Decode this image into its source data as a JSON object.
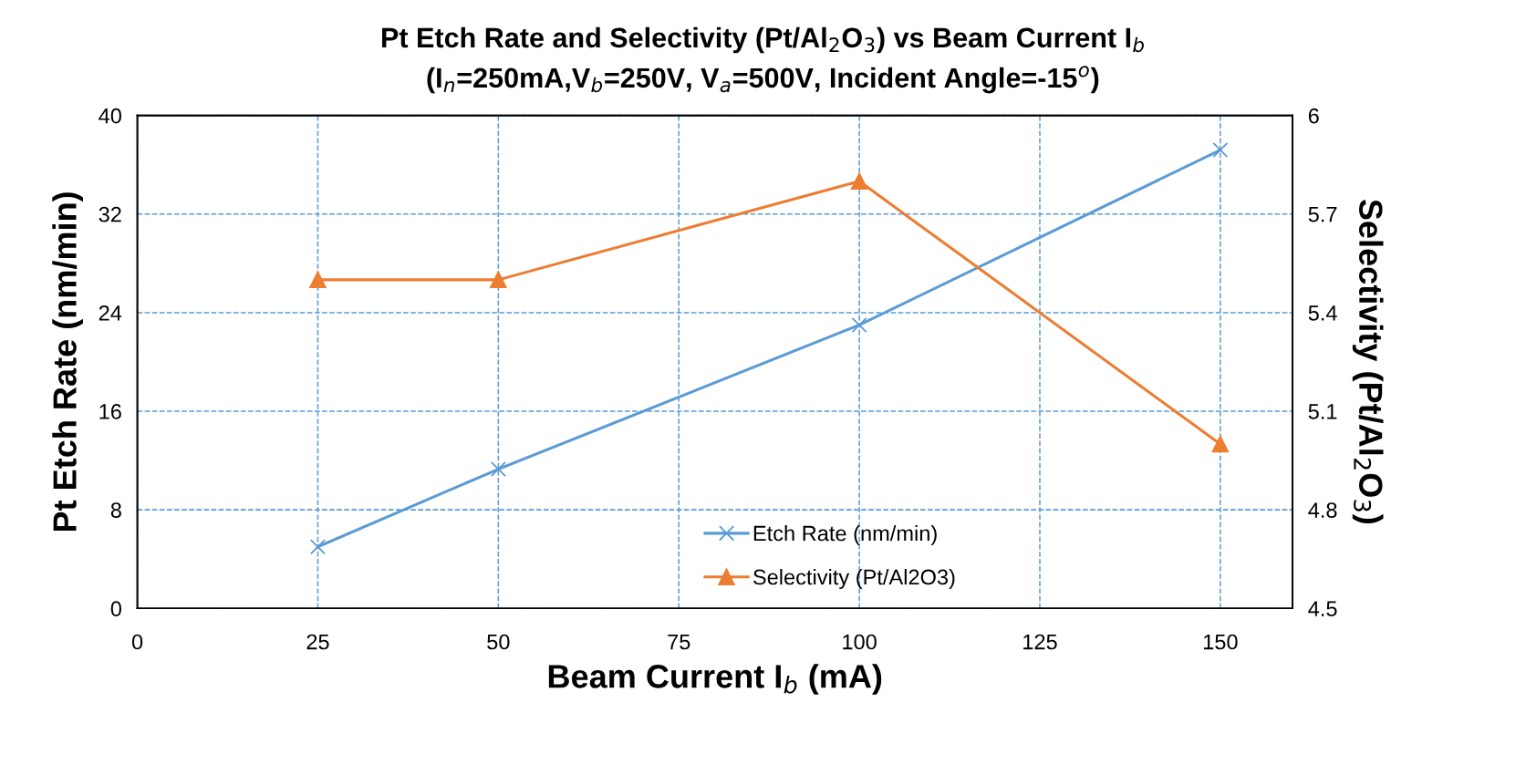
{
  "chart_data": {
    "type": "line",
    "title": "Pt Etch Rate and Selectivity (Pt/Al$_{2}$O$_{3}$) vs Beam Current I$_{b}$",
    "subtitle": "(I$_{n}$=250mA,V$_{b}$=250V, V$_{a}$=500V, Incident Angle=-15$^{o}$)",
    "xlabel": "Beam Current I$_{b}$ (mA)",
    "ylabel": "Pt Etch Rate (nm/min)",
    "y2label": "Selectivity (Pt/Al$_{2}$O$_{3}$)",
    "x": [
      25,
      50,
      100,
      150
    ],
    "series": [
      {
        "name": "Etch Rate (nm/min)",
        "color": "#5b9bd5",
        "values": [
          5.0,
          11.3,
          23.0,
          37.2
        ],
        "marker": "cross"
      },
      {
        "name": "Selectivity (Pt/Al2O3)",
        "color": "#ed7d31",
        "values": [
          5.5,
          5.5,
          5.8,
          5.0
        ],
        "marker": "triangle",
        "axis": "y2"
      }
    ],
    "xlim": [
      0,
      160
    ],
    "xticks": [
      0,
      25,
      50,
      75,
      100,
      125,
      150
    ],
    "ylim": [
      0,
      40
    ],
    "yticks": [
      0,
      8,
      16,
      24,
      32,
      40
    ],
    "y2lim": [
      4.5,
      6
    ],
    "y2ticks": [
      4.5,
      4.8,
      5.1,
      5.4,
      5.7,
      6
    ],
    "grid": true,
    "legend": "bottom",
    "line_style": "solid"
  }
}
